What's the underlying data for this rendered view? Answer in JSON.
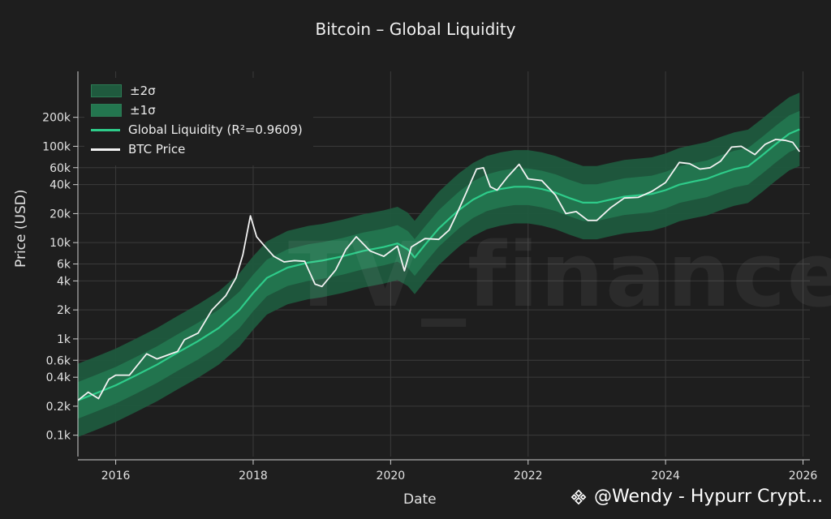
{
  "colors": {
    "background": "#1e1e1e",
    "band2": "#1f5a3e",
    "band1": "#23764f",
    "liquidity": "#2ecc8a",
    "btc": "#f2f2f2",
    "grid": "#3b3b3b"
  },
  "chart_data": {
    "type": "line",
    "title": "Bitcoin – Global Liquidity",
    "xlabel": "Date",
    "ylabel": "Price (USD)",
    "yscale": "log",
    "xlim": [
      2015.45,
      2026.1
    ],
    "ylim": [
      60,
      600000
    ],
    "x_ticks": [
      2016,
      2018,
      2020,
      2022,
      2024,
      2026
    ],
    "x_tick_labels": [
      "2016",
      "2018",
      "2020",
      "2022",
      "2024",
      "2026"
    ],
    "y_ticks": [
      100,
      200,
      400,
      600,
      1000,
      2000,
      4000,
      6000,
      10000,
      20000,
      40000,
      60000,
      100000,
      200000
    ],
    "y_tick_labels": [
      "0.1k",
      "0.2k",
      "0.4k",
      "0.6k",
      "1k",
      "2k",
      "4k",
      "6k",
      "10k",
      "20k",
      "40k",
      "60k",
      "100k",
      "200k"
    ],
    "legend": [
      "±2σ",
      "±1σ",
      "Global Liquidity (R²=0.9609)",
      "BTC Price"
    ],
    "sigma_factor": 1.55,
    "series": [
      {
        "name": "Global Liquidity (R²=0.9609)",
        "x": [
          2015.45,
          2015.7,
          2016.0,
          2016.3,
          2016.6,
          2016.9,
          2017.2,
          2017.5,
          2017.8,
          2018.0,
          2018.2,
          2018.5,
          2018.8,
          2019.0,
          2019.3,
          2019.6,
          2019.9,
          2020.1,
          2020.25,
          2020.35,
          2020.5,
          2020.7,
          2020.9,
          2021.0,
          2021.2,
          2021.4,
          2021.6,
          2021.8,
          2022.0,
          2022.2,
          2022.4,
          2022.6,
          2022.8,
          2023.0,
          2023.2,
          2023.4,
          2023.6,
          2023.8,
          2024.0,
          2024.2,
          2024.4,
          2024.6,
          2024.8,
          2025.0,
          2025.2,
          2025.4,
          2025.6,
          2025.8,
          2025.95
        ],
        "values": [
          230,
          270,
          330,
          420,
          540,
          720,
          950,
          1300,
          2000,
          3000,
          4300,
          5500,
          6200,
          6500,
          7200,
          8200,
          9000,
          9800,
          8500,
          7000,
          9500,
          14000,
          19000,
          22000,
          28000,
          33000,
          36000,
          38000,
          38000,
          36000,
          33000,
          29000,
          26000,
          26000,
          28000,
          30000,
          31000,
          32000,
          35000,
          40000,
          43000,
          46000,
          52000,
          58000,
          62000,
          80000,
          105000,
          135000,
          150000
        ]
      },
      {
        "name": "BTC Price",
        "x": [
          2015.45,
          2015.6,
          2015.75,
          2015.9,
          2016.0,
          2016.2,
          2016.45,
          2016.6,
          2016.9,
          2017.0,
          2017.2,
          2017.4,
          2017.6,
          2017.75,
          2017.85,
          2017.96,
          2018.05,
          2018.15,
          2018.3,
          2018.45,
          2018.6,
          2018.75,
          2018.9,
          2019.0,
          2019.2,
          2019.35,
          2019.5,
          2019.7,
          2019.9,
          2020.1,
          2020.2,
          2020.3,
          2020.5,
          2020.7,
          2020.85,
          2020.95,
          2021.1,
          2021.25,
          2021.35,
          2021.45,
          2021.55,
          2021.7,
          2021.87,
          2022.0,
          2022.2,
          2022.4,
          2022.55,
          2022.7,
          2022.87,
          2023.0,
          2023.2,
          2023.4,
          2023.6,
          2023.8,
          2024.0,
          2024.2,
          2024.35,
          2024.5,
          2024.65,
          2024.8,
          2024.96,
          2025.1,
          2025.3,
          2025.45,
          2025.6,
          2025.75,
          2025.85,
          2025.95
        ],
        "values": [
          230,
          280,
          240,
          380,
          420,
          420,
          700,
          620,
          740,
          980,
          1150,
          2000,
          2800,
          4300,
          7500,
          19000,
          11500,
          9500,
          7200,
          6300,
          6500,
          6400,
          3700,
          3500,
          5200,
          8500,
          11500,
          8200,
          7200,
          9200,
          5100,
          9000,
          11000,
          10800,
          13500,
          19000,
          33000,
          58000,
          60000,
          38000,
          35000,
          48000,
          65000,
          46000,
          44000,
          31000,
          20000,
          21000,
          17000,
          17000,
          23000,
          29000,
          29500,
          34000,
          42000,
          68000,
          66000,
          58000,
          60000,
          70000,
          98000,
          100000,
          82000,
          105000,
          118000,
          115000,
          110000,
          88000
        ]
      }
    ]
  },
  "footer": {
    "author": "@Wendy - Hypurr Crypt..."
  },
  "watermark_text": "TV_finance"
}
